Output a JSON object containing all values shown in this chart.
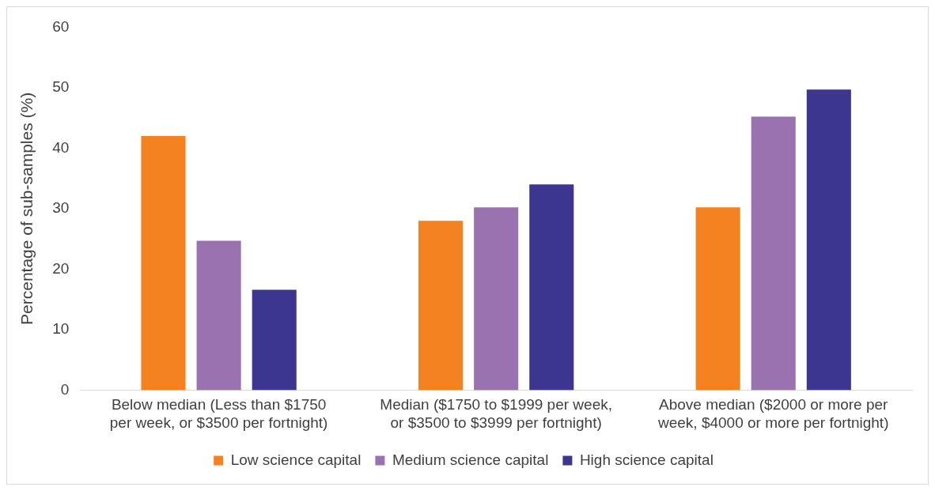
{
  "chart_data": {
    "type": "bar",
    "ylabel": "Percentage of sub-samples (%)",
    "categories": [
      "Below median (Less than $1750 per week, or $3500 per fortnight)",
      "Median ($1750 to $1999 per week, or $3500 to $3999 per fortnight)",
      "Above median ($2000 or more per week, $4000 or more per fortnight)"
    ],
    "series": [
      {
        "name": "Low science capital",
        "color": "#f58220",
        "values": [
          42,
          28,
          30.2
        ]
      },
      {
        "name": "Medium science capital",
        "color": "#9b72b0",
        "values": [
          24.7,
          30.2,
          45.2
        ]
      },
      {
        "name": "High science capital",
        "color": "#3c3691",
        "values": [
          16.6,
          34,
          49.7
        ]
      }
    ],
    "ylim": [
      0,
      60
    ],
    "yticks": [
      0,
      10,
      20,
      30,
      40,
      50,
      60
    ],
    "grid": false,
    "legend": "bottom"
  }
}
